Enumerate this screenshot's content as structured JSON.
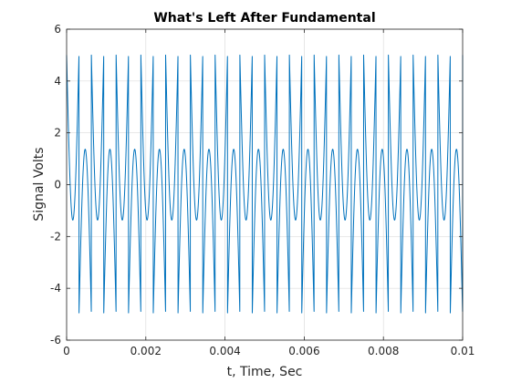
{
  "chart_data": {
    "type": "line",
    "title": "What's Left After Fundamental",
    "xlabel": "t, Time, Sec",
    "ylabel": "Signal Volts",
    "xlim": [
      0,
      0.01
    ],
    "ylim": [
      -6,
      6
    ],
    "xticks": [
      0,
      0.002,
      0.004,
      0.006,
      0.008,
      0.01
    ],
    "xtick_labels": [
      "0",
      "0.002",
      "0.004",
      "0.006",
      "0.008",
      "0.01"
    ],
    "yticks": [
      -6,
      -4,
      -2,
      0,
      2,
      4,
      6
    ],
    "ytick_labels": [
      "-6",
      "-4",
      "-2",
      "0",
      "2",
      "4",
      "6"
    ],
    "grid": true,
    "series": [
      {
        "color": "#0072bd",
        "signal": {
          "form": "square_wave_minus_fundamental",
          "square_amplitude_volts": 5,
          "period_sec": 0.000625,
          "x_start": 0,
          "x_end": 0.01
        }
      }
    ]
  }
}
